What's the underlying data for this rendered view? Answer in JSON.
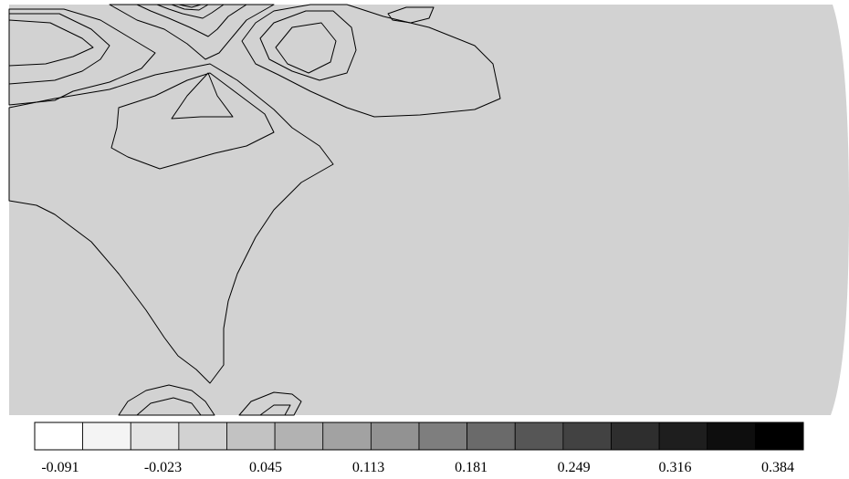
{
  "chart_data": {
    "type": "heatmap",
    "title": "",
    "xlabel": "",
    "ylabel": "",
    "legend_position": "bottom",
    "colorbar": {
      "levels": 16,
      "colors": [
        "#ffffff",
        "#f4f4f4",
        "#e4e4e4",
        "#d2d2d2",
        "#c2c2c2",
        "#b2b2b2",
        "#a2a2a2",
        "#929292",
        "#7e7e7e",
        "#6a6a6a",
        "#565656",
        "#424242",
        "#2e2e2e",
        "#1e1e1e",
        "#0e0e0e",
        "#000000"
      ],
      "tick_values": [
        -0.091,
        -0.023,
        0.045,
        0.113,
        0.181,
        0.249,
        0.316,
        0.384
      ],
      "tick_labels": [
        "-0.091",
        "-0.023",
        "0.045",
        "0.113",
        "0.181",
        "0.249",
        "0.316",
        "0.384"
      ]
    }
  }
}
